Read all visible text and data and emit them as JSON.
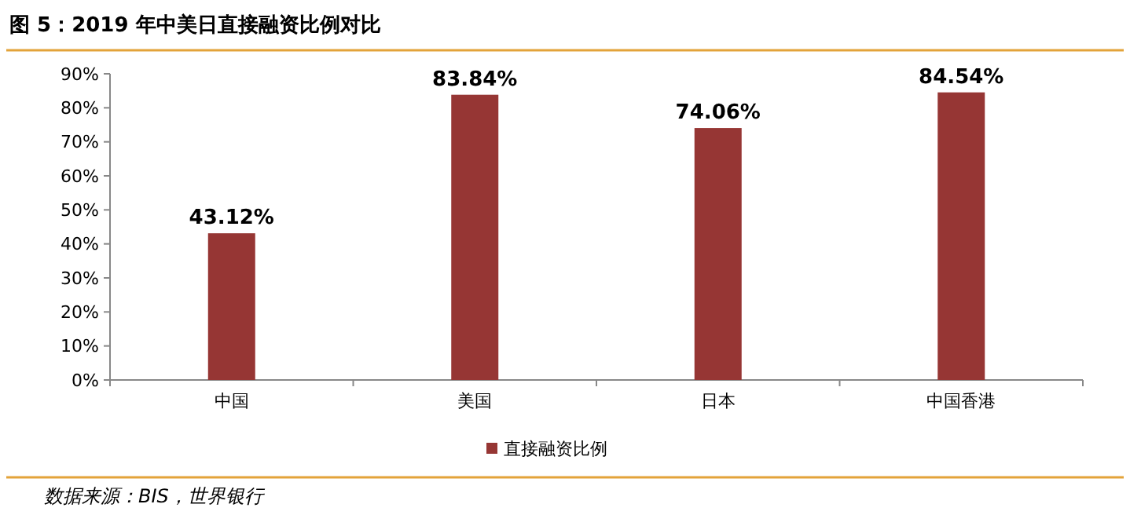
{
  "chart_data": {
    "type": "bar",
    "title": "图 5：2019 年中美日直接融资比例对比",
    "categories": [
      "中国",
      "美国",
      "日本",
      "中国香港"
    ],
    "series": [
      {
        "name": "直接融资比例",
        "color": "#963634",
        "values": [
          43.12,
          83.84,
          74.06,
          84.54
        ],
        "value_labels": [
          "43.12%",
          "83.84%",
          "74.06%",
          "84.54%"
        ]
      }
    ],
    "ylim": [
      0,
      90
    ],
    "yticks": [
      {
        "value": 0,
        "label": "0%"
      },
      {
        "value": 10,
        "label": "10%"
      },
      {
        "value": 20,
        "label": "20%"
      },
      {
        "value": 30,
        "label": "30%"
      },
      {
        "value": 40,
        "label": "40%"
      },
      {
        "value": 50,
        "label": "50%"
      },
      {
        "value": 60,
        "label": "60%"
      },
      {
        "value": 70,
        "label": "70%"
      },
      {
        "value": 80,
        "label": "80%"
      },
      {
        "value": 90,
        "label": "90%"
      }
    ],
    "grid": false,
    "legend": "bottom",
    "annotations": [
      "数据来源：BIS，世界银行"
    ]
  }
}
